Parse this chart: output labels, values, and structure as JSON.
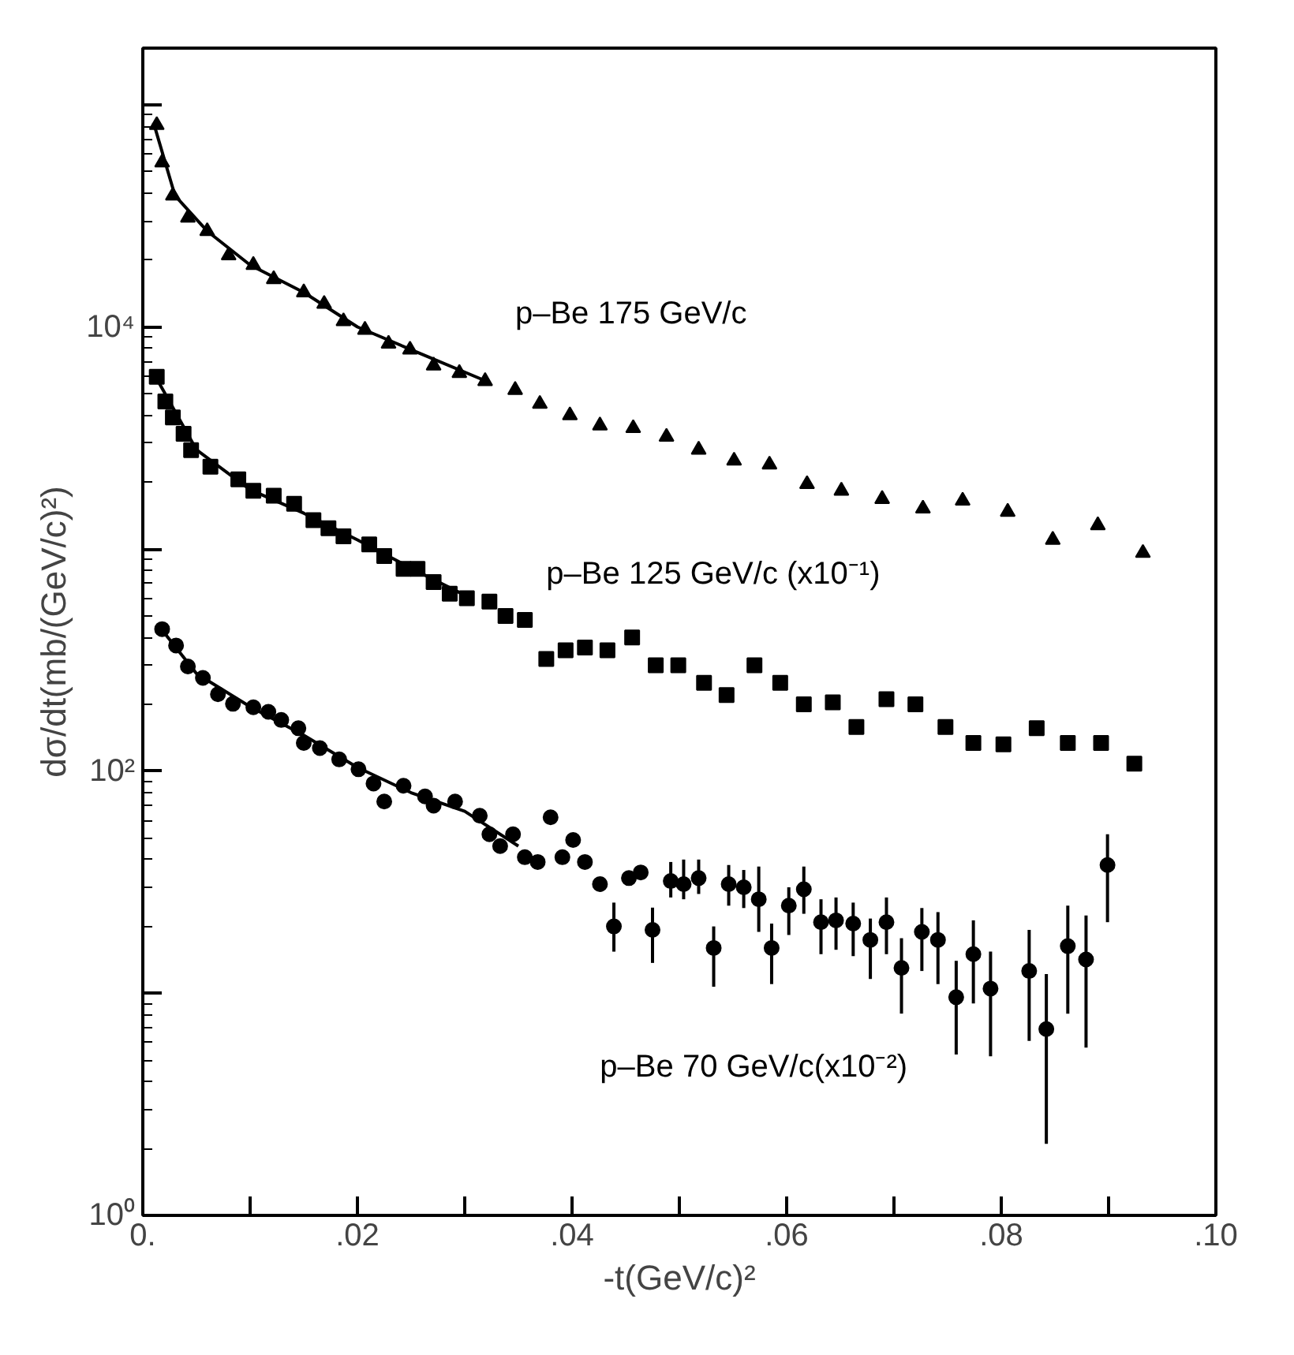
{
  "chart_data": {
    "type": "scatter",
    "xlabel": "-t(GeV/c)²",
    "ylabel": "dσ/dt(mb/(GeV/c)²)",
    "log": "y",
    "grid": false,
    "xlim": [
      0,
      0.1
    ],
    "ylim": [
      1,
      180000
    ],
    "xticks": [
      {
        "value": 0,
        "label": "0."
      },
      {
        "value": 0.01,
        "label": null
      },
      {
        "value": 0.02,
        "label": ".02"
      },
      {
        "value": 0.03,
        "label": null
      },
      {
        "value": 0.04,
        "label": ".04"
      },
      {
        "value": 0.05,
        "label": null
      },
      {
        "value": 0.06,
        "label": ".06"
      },
      {
        "value": 0.07,
        "label": null
      },
      {
        "value": 0.08,
        "label": ".08"
      },
      {
        "value": 0.09,
        "label": null
      },
      {
        "value": 0.1,
        "label": ".10"
      }
    ],
    "yticks": [
      {
        "value": 1,
        "label": "10⁰"
      },
      {
        "value": 10,
        "label": null
      },
      {
        "value": 100,
        "label": "10²"
      },
      {
        "value": 1000,
        "label": null
      },
      {
        "value": 10000,
        "label": "10⁴"
      },
      {
        "value": 100000,
        "label": null
      }
    ],
    "series": [
      {
        "name": "p–Be 175 GeV/c",
        "color": "#000000",
        "marker": "triangle",
        "x": [
          0.0013,
          0.0018,
          0.0028,
          0.0042,
          0.006,
          0.008,
          0.0103,
          0.0122,
          0.015,
          0.0169,
          0.0187,
          0.0207,
          0.0229,
          0.0249,
          0.0271,
          0.0295,
          0.0319,
          0.0347,
          0.037,
          0.0398,
          0.0426,
          0.0457,
          0.0488,
          0.0518,
          0.0551,
          0.0584,
          0.0619,
          0.0651,
          0.0689,
          0.0727,
          0.0764,
          0.0806,
          0.0848,
          0.089,
          0.0932
        ],
        "values": [
          81000,
          55000,
          39000,
          31000,
          27000,
          21000,
          19000,
          16400,
          14300,
          12700,
          10600,
          9700,
          8400,
          7900,
          6700,
          6200,
          5700,
          5200,
          4500,
          4000,
          3600,
          3500,
          3200,
          2800,
          2500,
          2400,
          1960,
          1830,
          1680,
          1520,
          1650,
          1470,
          1100,
          1280,
          960
        ]
      },
      {
        "name": "p–Be 125 GeV/c (x10⁻¹)",
        "color": "#000000",
        "marker": "square",
        "x": [
          0.0013,
          0.0021,
          0.0028,
          0.0038,
          0.0045,
          0.0063,
          0.0089,
          0.0103,
          0.0122,
          0.0141,
          0.0159,
          0.0173,
          0.0187,
          0.0211,
          0.0225,
          0.0243,
          0.0256,
          0.0271,
          0.0286,
          0.0302,
          0.0323,
          0.0338,
          0.0356,
          0.0376,
          0.0394,
          0.0412,
          0.0433,
          0.0456,
          0.0478,
          0.0499,
          0.0523,
          0.0544,
          0.057,
          0.0594,
          0.0616,
          0.0643,
          0.0665,
          0.0693,
          0.072,
          0.0748,
          0.0774,
          0.0802,
          0.0833,
          0.0862,
          0.0893,
          0.0924
        ],
        "values": [
          5960,
          4620,
          3910,
          3300,
          2790,
          2350,
          2060,
          1830,
          1740,
          1600,
          1350,
          1240,
          1140,
          1050,
          930,
          815,
          815,
          710,
          630,
          600,
          580,
          500,
          480,
          320,
          350,
          360,
          350,
          400,
          300,
          300,
          250,
          220,
          300,
          250,
          200,
          204,
          158,
          211,
          200,
          158,
          134,
          132,
          156,
          134,
          134,
          108
        ]
      },
      {
        "name": "p–Be 70 GeV/c(x10⁻²)",
        "color": "#000000",
        "marker": "circle",
        "x": [
          0.0018,
          0.0031,
          0.0042,
          0.0056,
          0.007,
          0.0084,
          0.0103,
          0.0117,
          0.0129,
          0.0145,
          0.015,
          0.0165,
          0.0183,
          0.0201,
          0.0215,
          0.0225,
          0.0243,
          0.0263,
          0.0271,
          0.0291,
          0.0314,
          0.0323,
          0.0333,
          0.0345,
          0.0356,
          0.0368,
          0.038,
          0.0391,
          0.0401,
          0.0412,
          0.0426,
          0.0439,
          0.0453,
          0.0464,
          0.0475,
          0.0492,
          0.0504,
          0.0518,
          0.0532,
          0.0546,
          0.056,
          0.0574,
          0.0586,
          0.0602,
          0.0616,
          0.0632,
          0.0646,
          0.0662,
          0.0678,
          0.0693,
          0.0707,
          0.0726,
          0.0741,
          0.0758,
          0.0774,
          0.079,
          0.0826,
          0.0842,
          0.0862,
          0.0879,
          0.0899
        ],
        "values": [
          436,
          368,
          296,
          263,
          222,
          201,
          194,
          185,
          170,
          156,
          134,
          127,
          113,
          102,
          88,
          73,
          86,
          77,
          70,
          73,
          63,
          52,
          46,
          52,
          41,
          39,
          62,
          41,
          49,
          39,
          31,
          20,
          33,
          35,
          19.3,
          32,
          31,
          33,
          16,
          31,
          30,
          26.5,
          16,
          24.8,
          29.4,
          20.9,
          21.3,
          20.6,
          17.4,
          20.9,
          13,
          18.9,
          17.4,
          9.6,
          15,
          10.5,
          12.6,
          6.9,
          16.3,
          14.2,
          37.8
        ],
        "errors": [
          null,
          null,
          null,
          null,
          null,
          null,
          null,
          null,
          null,
          null,
          null,
          null,
          null,
          null,
          null,
          null,
          null,
          null,
          null,
          null,
          null,
          null,
          null,
          null,
          null,
          null,
          null,
          null,
          null,
          null,
          null,
          [
            15.4,
            25.6
          ],
          null,
          null,
          [
            13.7,
            24.3
          ],
          [
            27,
            39
          ],
          [
            26.5,
            40
          ],
          [
            28,
            40
          ],
          [
            10.7,
            20
          ],
          [
            24.8,
            37.8
          ],
          [
            24.2,
            35.9
          ],
          [
            18.9,
            37.2
          ],
          [
            11,
            20.6
          ],
          [
            18.3,
            30
          ],
          [
            22.8,
            37.2
          ],
          [
            15,
            26.5
          ],
          [
            15.7,
            27
          ],
          [
            14.7,
            25.6
          ],
          [
            11.6,
            21.7
          ],
          [
            15,
            27
          ],
          [
            8.1,
            17.7
          ],
          [
            12.6,
            24.2
          ],
          [
            11,
            23.2
          ],
          [
            5.3,
            14
          ],
          [
            9,
            21.3
          ],
          [
            5.2,
            15.4
          ],
          [
            6.1,
            19.3
          ],
          [
            2.1,
            12.2
          ],
          [
            8.1,
            24.8
          ],
          [
            5.7,
            22.4
          ],
          [
            20.9,
            52
          ]
        ]
      },
      {
        "type": "line",
        "color": "#000000",
        "x": [
          0.001,
          0.003,
          0.006,
          0.01,
          0.015,
          0.02,
          0.025,
          0.032
        ],
        "values": [
          83000,
          39000,
          27000,
          19000,
          14300,
          10000,
          7900,
          5700
        ]
      },
      {
        "type": "line",
        "color": "#000000",
        "x": [
          0.001,
          0.005,
          0.01,
          0.015,
          0.02,
          0.025,
          0.03
        ],
        "values": [
          6200,
          2800,
          1850,
          1450,
          1100,
          820,
          620
        ]
      },
      {
        "type": "line",
        "color": "#000000",
        "x": [
          0.0015,
          0.005,
          0.01,
          0.015,
          0.02,
          0.025,
          0.03,
          0.035
        ],
        "values": [
          450,
          275,
          195,
          145,
          104,
          80,
          66,
          46
        ]
      }
    ]
  }
}
